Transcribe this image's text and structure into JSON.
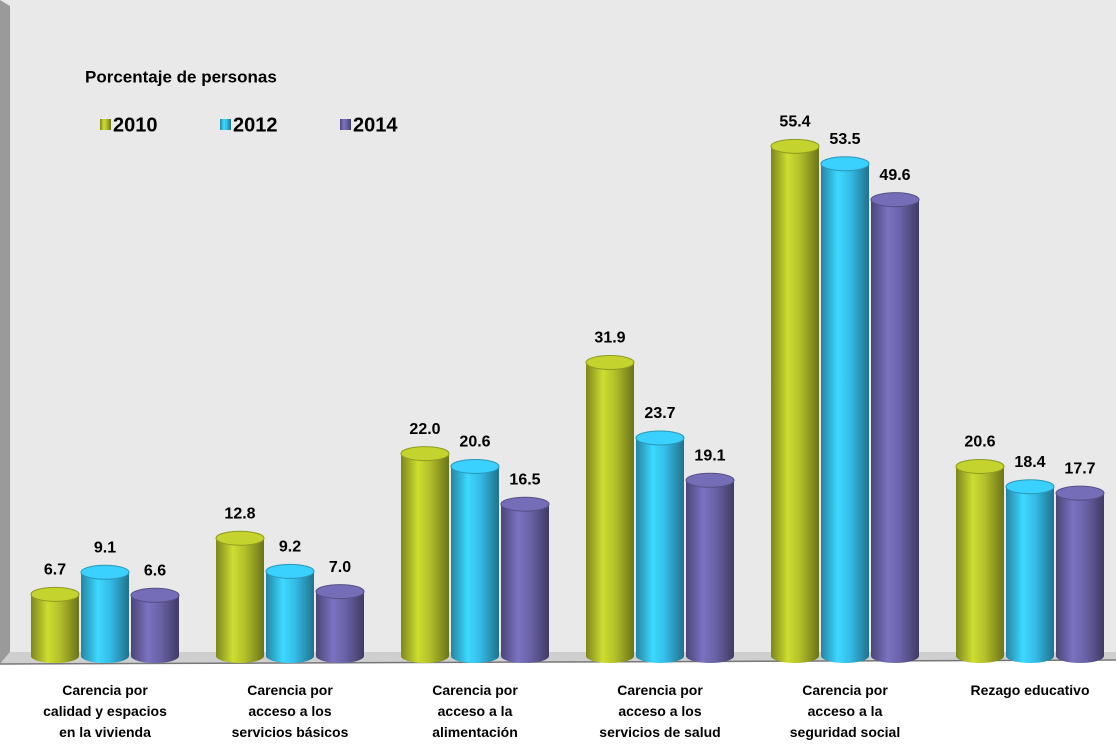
{
  "chart_data": {
    "type": "bar",
    "title": "Porcentaje de personas",
    "categories": [
      "Carencia por\ncalidad y espacios\nen la vivienda",
      "Carencia por\nacceso a los\nservicios básicos",
      "Carencia por\nacceso a la\nalimentación",
      "Carencia por\nacceso a los\nservicios de salud",
      "Carencia por\nacceso a la\nseguridad social",
      "Rezago educativo"
    ],
    "series": [
      {
        "name": "2010",
        "color": "#b3c02a",
        "values": [
          6.7,
          12.8,
          22.0,
          31.9,
          55.4,
          20.6
        ],
        "value_labels": [
          "6.7",
          "12.8",
          "22.0",
          "31.9",
          "55.4",
          "20.6"
        ]
      },
      {
        "name": "2012",
        "color": "#35bde9",
        "values": [
          9.1,
          9.2,
          20.6,
          23.7,
          53.5,
          18.4
        ],
        "value_labels": [
          "9.1",
          "9.2",
          "20.6",
          "23.7",
          "53.5",
          "18.4"
        ]
      },
      {
        "name": "2014",
        "color": "#6b63a8",
        "values": [
          6.6,
          7.0,
          16.5,
          19.1,
          49.6,
          17.7
        ],
        "value_labels": [
          "6.6",
          "7.0",
          "16.5",
          "19.1",
          "49.6",
          "17.7"
        ]
      }
    ],
    "legend": "top-left"
  }
}
